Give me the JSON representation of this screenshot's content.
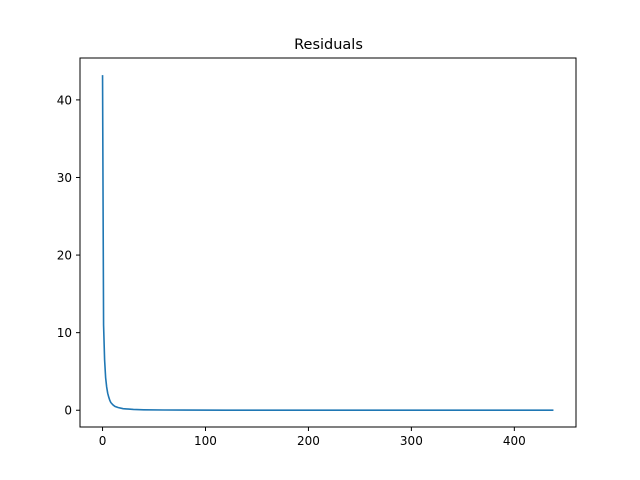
{
  "chart_data": {
    "type": "line",
    "title": "Residuals",
    "xlabel": "",
    "ylabel": "",
    "xlim": [
      -21.9,
      459.9
    ],
    "ylim": [
      -2.16,
      45.4
    ],
    "grid": false,
    "legend": "none",
    "xticks": [
      0,
      100,
      200,
      300,
      400
    ],
    "xtick_labels": [
      "0",
      "100",
      "200",
      "300",
      "400"
    ],
    "yticks": [
      0,
      10,
      20,
      30,
      40
    ],
    "ytick_labels": [
      "0",
      "10",
      "20",
      "30",
      "40"
    ],
    "series": [
      {
        "color": "#1f77b4",
        "x": [
          0,
          1,
          2,
          3,
          4,
          5,
          6,
          7,
          8,
          10,
          12,
          15,
          20,
          30,
          40,
          60,
          80,
          120,
          200,
          300,
          400,
          438
        ],
        "y": [
          43.2,
          11.0,
          6.5,
          4.2,
          3.0,
          2.2,
          1.7,
          1.3,
          1.0,
          0.7,
          0.5,
          0.35,
          0.2,
          0.1,
          0.06,
          0.03,
          0.02,
          0.01,
          0.005,
          0.003,
          0.002,
          0.002
        ]
      }
    ]
  }
}
